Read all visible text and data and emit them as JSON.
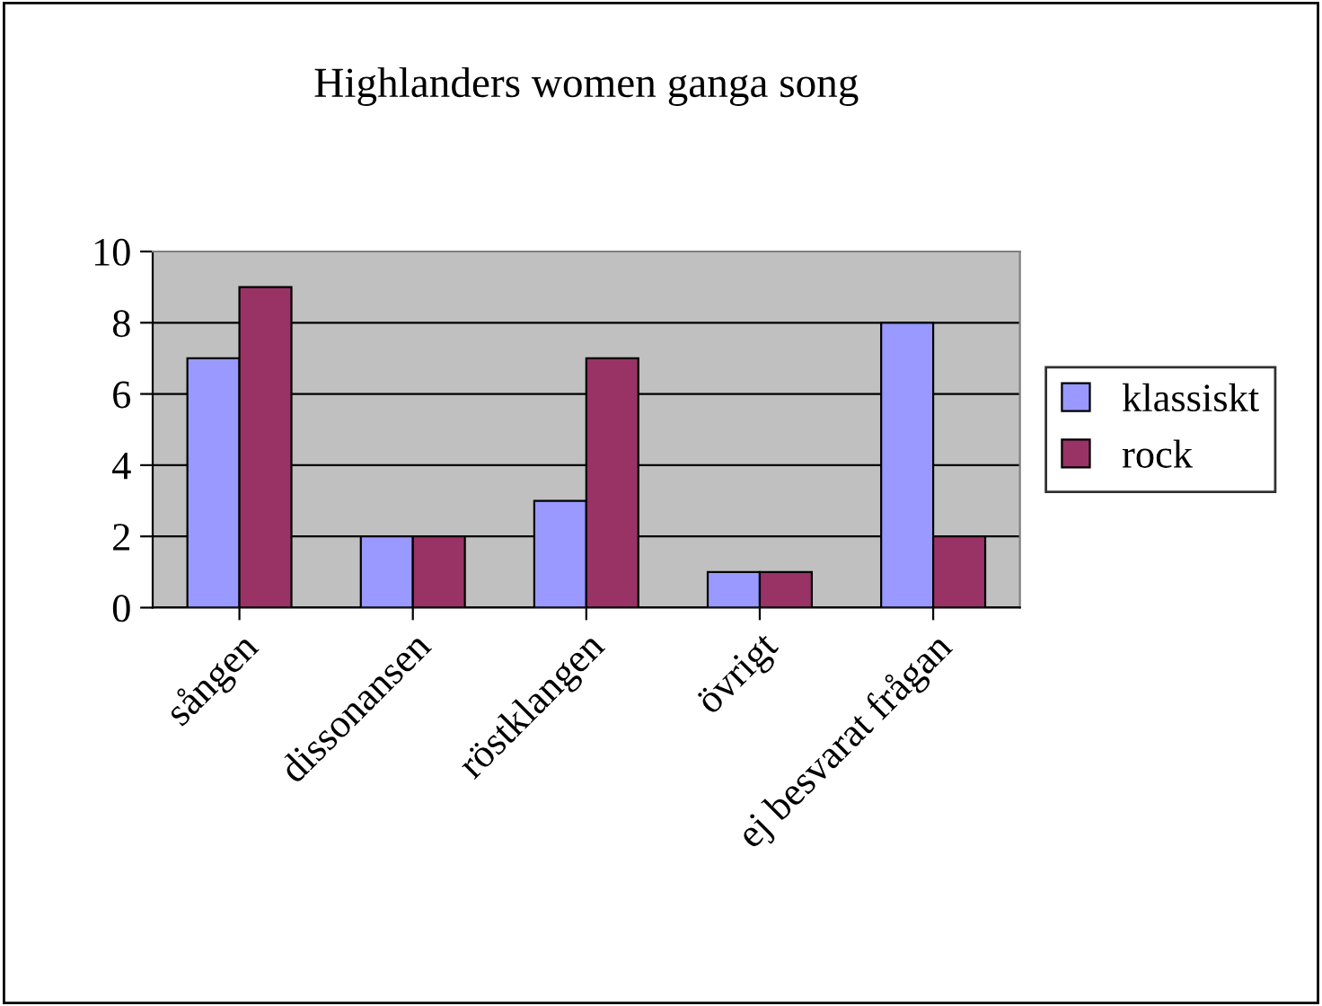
{
  "chart_data": {
    "type": "bar",
    "title": "Highlanders women ganga song",
    "categories": [
      "sången",
      "dissonansen",
      "röstklangen",
      "övrigt",
      "ej besvarat frågan"
    ],
    "series": [
      {
        "name": "klassiskt",
        "color": "#9999ff",
        "values": [
          7,
          2,
          3,
          1,
          8
        ]
      },
      {
        "name": "rock",
        "color": "#993366",
        "values": [
          9,
          2,
          7,
          1,
          2
        ]
      }
    ],
    "ylim": [
      0,
      10
    ],
    "yticks": [
      0,
      2,
      4,
      6,
      8,
      10
    ],
    "grid": "y",
    "legend": "right"
  }
}
